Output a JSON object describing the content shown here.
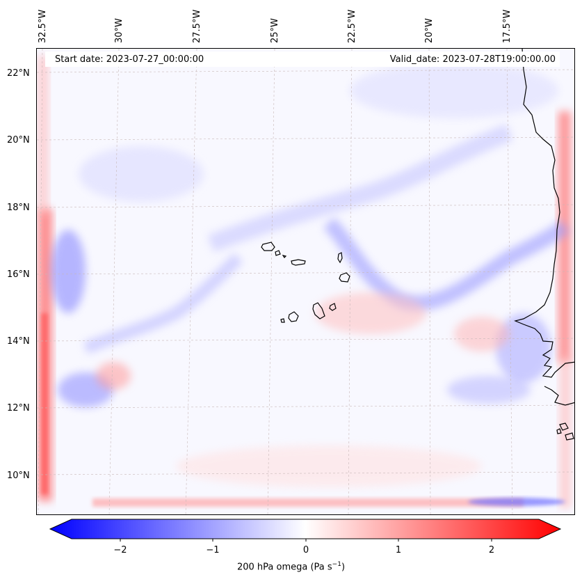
{
  "header": {
    "start_date": "Start date: 2023-07-27_00:00:00",
    "valid_date": "Valid_date: 2023-07-28T19:00:00.00"
  },
  "axes": {
    "lon_labels": [
      "32.5°W",
      "30°W",
      "27.5°W",
      "25°W",
      "22.5°W",
      "20°W",
      "17.5°W"
    ],
    "lat_labels": [
      "22°N",
      "20°N",
      "18°N",
      "16°N",
      "14°N",
      "12°N",
      "10°N"
    ]
  },
  "colorbar": {
    "label_text": "200 hPa omega (Pa s",
    "label_sup": "−1",
    "label_close": ")",
    "ticks": [
      "−2",
      "−1",
      "0",
      "1",
      "2"
    ],
    "min": -2.7,
    "max": 2.7,
    "colors": {
      "negative": "#0000ff",
      "zero": "#ffffff",
      "positive": "#ff0000"
    }
  },
  "colors": {
    "coastline": "#000000",
    "gridline": "#c8b8b8",
    "background_field": "#f8f8ff"
  }
}
